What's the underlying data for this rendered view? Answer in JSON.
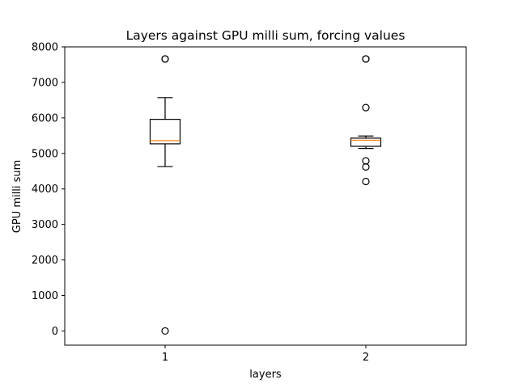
{
  "chart_data": {
    "type": "box",
    "title": "Layers against GPU milli sum, forcing values",
    "xlabel": "layers",
    "ylabel": "GPU milli sum",
    "ylim": [
      -400,
      8000
    ],
    "yticks": [
      0,
      1000,
      2000,
      3000,
      4000,
      5000,
      6000,
      7000,
      8000
    ],
    "grid": false,
    "colors": {
      "box": "#000000",
      "median": "#ff7f0e",
      "frame": "#000000"
    },
    "boxes": [
      {
        "category": "1",
        "whisker_low": 4630,
        "q1": 5270,
        "median": 5360,
        "q3": 5960,
        "whisker_high": 6570,
        "outliers": [
          7660,
          7660,
          0
        ]
      },
      {
        "category": "2",
        "whisker_low": 5140,
        "q1": 5200,
        "median": 5370,
        "q3": 5430,
        "whisker_high": 5490,
        "outliers": [
          7660,
          7660,
          6290,
          4790,
          4620,
          4210
        ]
      }
    ]
  }
}
